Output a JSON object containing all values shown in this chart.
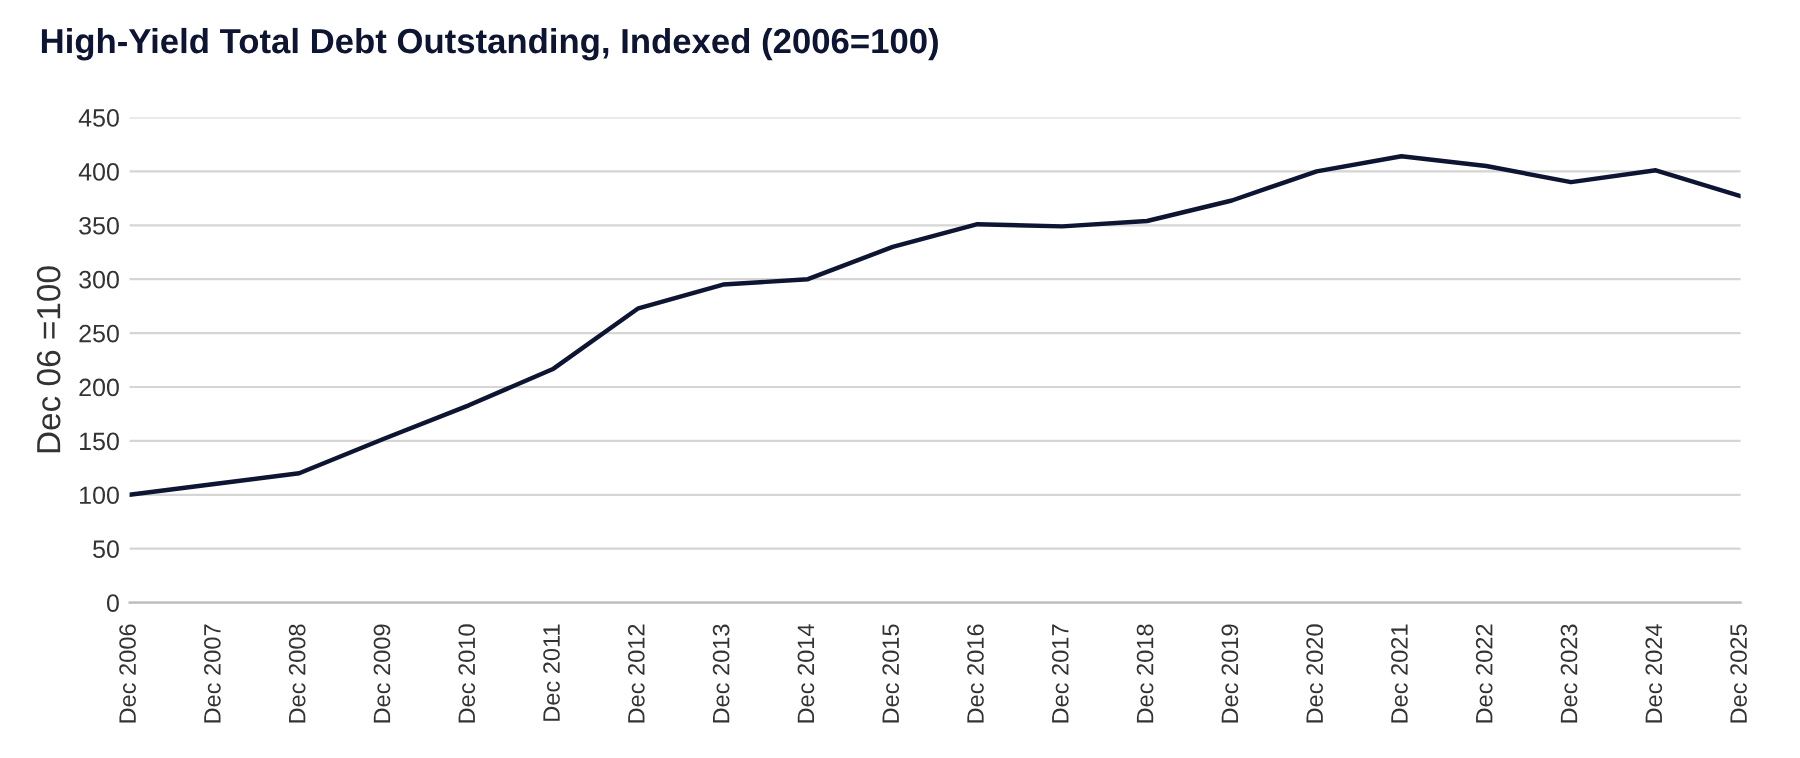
{
  "chart_data": {
    "type": "line",
    "title": "High-Yield Total Debt Outstanding, Indexed (2006=100)",
    "ylabel": "Dec 06 =100",
    "categories": [
      "Dec 2006",
      "Dec 2007",
      "Dec 2008",
      "Dec 2009",
      "Dec 2010",
      "Dec 2011",
      "Dec 2012",
      "Dec 2013",
      "Dec 2014",
      "Dec 2015",
      "Dec 2016",
      "Dec 2017",
      "Dec 2018",
      "Dec 2019",
      "Dec 2020",
      "Dec 2021",
      "Dec 2022",
      "Dec 2023",
      "Dec 2024",
      "Dec 2025"
    ],
    "series": [
      {
        "color": "#0d1533",
        "values": [
          100,
          110,
          120,
          152,
          183,
          217,
          273,
          295,
          300,
          330,
          351,
          349,
          354,
          373,
          400,
          414,
          405,
          390,
          401,
          377
        ]
      }
    ],
    "ylim": [
      0,
      450
    ],
    "yticks": [
      0,
      50,
      100,
      150,
      200,
      250,
      300,
      350,
      400,
      450
    ],
    "grid": "y",
    "legend": false,
    "marker": "none",
    "line_style": "solid"
  }
}
